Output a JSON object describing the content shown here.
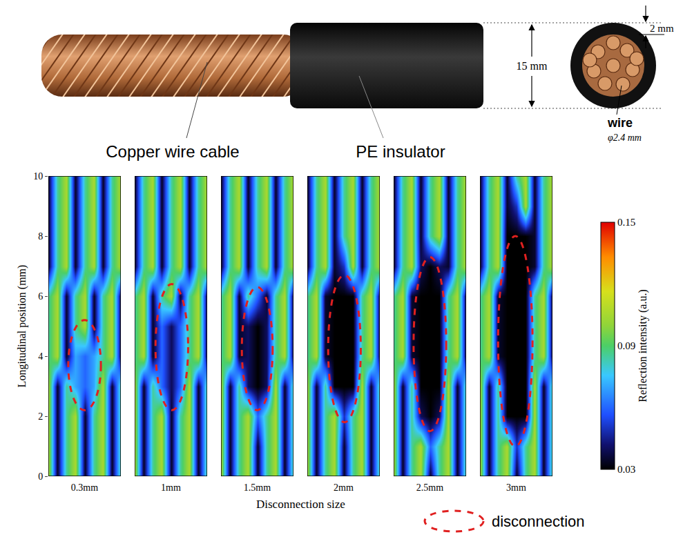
{
  "figure_labels": {
    "cable": "Copper wire cable",
    "insulator": "PE insulator",
    "diameter": "15 mm",
    "thickness": "2 mm",
    "wire": "wire",
    "wire_diameter": "φ2.4 mm"
  },
  "chart_data": {
    "type": "heatmap",
    "x_label": "Disconnection size",
    "y_label": "Longitudinal position (mm)",
    "x": [
      0,
      1,
      2,
      3,
      4,
      5,
      6,
      7,
      8
    ],
    "y": [
      0,
      1,
      2,
      3,
      4,
      5,
      6,
      7,
      8,
      9,
      10
    ],
    "xlim": [
      0,
      8
    ],
    "ylim": [
      0,
      10
    ],
    "yticks": [
      0,
      2,
      4,
      6,
      8,
      10
    ],
    "tick_labels": "y",
    "grid": false,
    "legend": "bottom right",
    "legend_label": "disconnection",
    "colorbar": {
      "title": "Reflection intensity (a.u.)",
      "range": [
        0.03,
        0.15
      ],
      "ticks": [
        0.03,
        0.09,
        0.15
      ]
    },
    "panels": [
      {
        "label": "0.3mm",
        "disconnection": {
          "x": [
            2.2,
            5.8
          ],
          "y": [
            2.2,
            5.2
          ]
        },
        "z": [
          [
            0.105,
            0.035,
            0.085,
            0.105,
            0.035,
            0.085,
            0.105,
            0.035,
            0.085
          ],
          [
            0.105,
            0.035,
            0.085,
            0.105,
            0.035,
            0.085,
            0.105,
            0.035,
            0.085
          ],
          [
            0.105,
            0.035,
            0.085,
            0.105,
            0.035,
            0.085,
            0.105,
            0.035,
            0.085
          ],
          [
            0.105,
            0.035,
            0.085,
            0.07,
            0.06,
            0.07,
            0.105,
            0.035,
            0.085
          ],
          [
            0.085,
            0.105,
            0.035,
            0.07,
            0.06,
            0.07,
            0.085,
            0.105,
            0.035
          ],
          [
            0.085,
            0.105,
            0.035,
            0.085,
            0.105,
            0.035,
            0.085,
            0.105,
            0.035
          ],
          [
            0.085,
            0.105,
            0.035,
            0.085,
            0.105,
            0.035,
            0.085,
            0.105,
            0.035
          ],
          [
            0.035,
            0.085,
            0.105,
            0.035,
            0.085,
            0.105,
            0.035,
            0.085,
            0.105
          ],
          [
            0.035,
            0.085,
            0.105,
            0.035,
            0.085,
            0.105,
            0.035,
            0.085,
            0.105
          ],
          [
            0.035,
            0.085,
            0.105,
            0.035,
            0.085,
            0.105,
            0.035,
            0.085,
            0.105
          ],
          [
            0.035,
            0.085,
            0.105,
            0.035,
            0.085,
            0.105,
            0.035,
            0.085,
            0.105
          ]
        ]
      },
      {
        "label": "1mm",
        "disconnection": {
          "x": [
            2.3,
            5.9
          ],
          "y": [
            2.2,
            6.4
          ]
        },
        "z": [
          [
            0.105,
            0.035,
            0.085,
            0.105,
            0.035,
            0.085,
            0.105,
            0.035,
            0.085
          ],
          [
            0.105,
            0.035,
            0.085,
            0.105,
            0.035,
            0.085,
            0.105,
            0.035,
            0.085
          ],
          [
            0.105,
            0.035,
            0.085,
            0.105,
            0.035,
            0.085,
            0.105,
            0.035,
            0.085
          ],
          [
            0.105,
            0.035,
            0.085,
            0.06,
            0.04,
            0.06,
            0.105,
            0.035,
            0.085
          ],
          [
            0.085,
            0.105,
            0.035,
            0.06,
            0.04,
            0.06,
            0.085,
            0.105,
            0.035
          ],
          [
            0.085,
            0.105,
            0.035,
            0.06,
            0.04,
            0.06,
            0.085,
            0.105,
            0.035
          ],
          [
            0.085,
            0.105,
            0.035,
            0.085,
            0.105,
            0.035,
            0.085,
            0.105,
            0.035
          ],
          [
            0.035,
            0.085,
            0.105,
            0.035,
            0.085,
            0.105,
            0.035,
            0.085,
            0.105
          ],
          [
            0.035,
            0.085,
            0.105,
            0.035,
            0.085,
            0.105,
            0.035,
            0.085,
            0.105
          ],
          [
            0.035,
            0.085,
            0.105,
            0.035,
            0.085,
            0.105,
            0.035,
            0.085,
            0.105
          ],
          [
            0.035,
            0.085,
            0.105,
            0.035,
            0.085,
            0.105,
            0.035,
            0.085,
            0.105
          ]
        ]
      },
      {
        "label": "1.5mm",
        "disconnection": {
          "x": [
            2.3,
            5.7
          ],
          "y": [
            2.2,
            6.3
          ]
        },
        "z": [
          [
            0.105,
            0.035,
            0.085,
            0.105,
            0.035,
            0.085,
            0.105,
            0.035,
            0.085
          ],
          [
            0.105,
            0.035,
            0.085,
            0.105,
            0.035,
            0.085,
            0.105,
            0.035,
            0.085
          ],
          [
            0.105,
            0.035,
            0.085,
            0.105,
            0.06,
            0.085,
            0.105,
            0.035,
            0.085
          ],
          [
            0.105,
            0.035,
            0.085,
            0.04,
            0.03,
            0.04,
            0.105,
            0.035,
            0.085
          ],
          [
            0.085,
            0.105,
            0.035,
            0.04,
            0.03,
            0.04,
            0.085,
            0.105,
            0.035
          ],
          [
            0.085,
            0.105,
            0.035,
            0.04,
            0.03,
            0.04,
            0.085,
            0.105,
            0.035
          ],
          [
            0.085,
            0.105,
            0.035,
            0.085,
            0.06,
            0.035,
            0.085,
            0.105,
            0.035
          ],
          [
            0.035,
            0.085,
            0.105,
            0.035,
            0.085,
            0.105,
            0.035,
            0.085,
            0.105
          ],
          [
            0.035,
            0.085,
            0.105,
            0.035,
            0.085,
            0.105,
            0.035,
            0.085,
            0.105
          ],
          [
            0.035,
            0.085,
            0.105,
            0.035,
            0.085,
            0.105,
            0.035,
            0.085,
            0.105
          ],
          [
            0.035,
            0.085,
            0.105,
            0.035,
            0.085,
            0.105,
            0.035,
            0.085,
            0.105
          ]
        ]
      },
      {
        "label": "2mm",
        "disconnection": {
          "x": [
            2.3,
            5.9
          ],
          "y": [
            1.8,
            6.7
          ]
        },
        "z": [
          [
            0.105,
            0.035,
            0.085,
            0.105,
            0.035,
            0.085,
            0.105,
            0.035,
            0.085
          ],
          [
            0.105,
            0.035,
            0.085,
            0.105,
            0.035,
            0.085,
            0.105,
            0.035,
            0.085
          ],
          [
            0.105,
            0.035,
            0.085,
            0.105,
            0.05,
            0.085,
            0.105,
            0.035,
            0.085
          ],
          [
            0.105,
            0.035,
            0.085,
            0.03,
            0.03,
            0.03,
            0.105,
            0.035,
            0.085
          ],
          [
            0.085,
            0.105,
            0.035,
            0.03,
            0.03,
            0.03,
            0.085,
            0.105,
            0.035
          ],
          [
            0.085,
            0.105,
            0.035,
            0.03,
            0.03,
            0.03,
            0.085,
            0.105,
            0.035
          ],
          [
            0.085,
            0.105,
            0.035,
            0.03,
            0.03,
            0.03,
            0.085,
            0.105,
            0.035
          ],
          [
            0.035,
            0.085,
            0.105,
            0.035,
            0.05,
            0.105,
            0.035,
            0.085,
            0.105
          ],
          [
            0.035,
            0.085,
            0.105,
            0.035,
            0.085,
            0.105,
            0.035,
            0.085,
            0.105
          ],
          [
            0.035,
            0.085,
            0.105,
            0.035,
            0.085,
            0.105,
            0.035,
            0.085,
            0.105
          ],
          [
            0.035,
            0.085,
            0.105,
            0.035,
            0.085,
            0.105,
            0.035,
            0.085,
            0.105
          ]
        ]
      },
      {
        "label": "2.5mm",
        "disconnection": {
          "x": [
            2.2,
            5.8
          ],
          "y": [
            1.5,
            7.3
          ]
        },
        "z": [
          [
            0.105,
            0.035,
            0.085,
            0.105,
            0.035,
            0.085,
            0.105,
            0.035,
            0.085
          ],
          [
            0.105,
            0.035,
            0.085,
            0.105,
            0.06,
            0.085,
            0.105,
            0.035,
            0.085
          ],
          [
            0.105,
            0.035,
            0.085,
            0.04,
            0.03,
            0.04,
            0.105,
            0.035,
            0.085
          ],
          [
            0.105,
            0.035,
            0.085,
            0.03,
            0.03,
            0.03,
            0.105,
            0.035,
            0.085
          ],
          [
            0.085,
            0.105,
            0.035,
            0.03,
            0.03,
            0.03,
            0.085,
            0.105,
            0.035
          ],
          [
            0.085,
            0.105,
            0.035,
            0.03,
            0.03,
            0.03,
            0.085,
            0.105,
            0.035
          ],
          [
            0.085,
            0.105,
            0.035,
            0.03,
            0.03,
            0.03,
            0.085,
            0.105,
            0.035
          ],
          [
            0.035,
            0.085,
            0.105,
            0.04,
            0.03,
            0.04,
            0.035,
            0.085,
            0.105
          ],
          [
            0.035,
            0.085,
            0.105,
            0.035,
            0.085,
            0.105,
            0.035,
            0.085,
            0.105
          ],
          [
            0.035,
            0.085,
            0.105,
            0.035,
            0.085,
            0.105,
            0.035,
            0.085,
            0.105
          ],
          [
            0.035,
            0.085,
            0.105,
            0.035,
            0.085,
            0.105,
            0.035,
            0.085,
            0.105
          ]
        ]
      },
      {
        "label": "3mm",
        "disconnection": {
          "x": [
            2.0,
            5.8
          ],
          "y": [
            1.0,
            8.0
          ]
        },
        "z": [
          [
            0.105,
            0.035,
            0.085,
            0.105,
            0.035,
            0.085,
            0.105,
            0.035,
            0.085
          ],
          [
            0.105,
            0.035,
            0.085,
            0.105,
            0.05,
            0.085,
            0.105,
            0.035,
            0.085
          ],
          [
            0.105,
            0.035,
            0.085,
            0.03,
            0.03,
            0.03,
            0.105,
            0.035,
            0.085
          ],
          [
            0.105,
            0.035,
            0.085,
            0.03,
            0.03,
            0.03,
            0.105,
            0.035,
            0.085
          ],
          [
            0.085,
            0.105,
            0.035,
            0.03,
            0.03,
            0.03,
            0.085,
            0.105,
            0.035
          ],
          [
            0.085,
            0.105,
            0.035,
            0.03,
            0.03,
            0.03,
            0.085,
            0.105,
            0.035
          ],
          [
            0.085,
            0.105,
            0.035,
            0.03,
            0.03,
            0.03,
            0.085,
            0.105,
            0.035
          ],
          [
            0.035,
            0.085,
            0.105,
            0.03,
            0.03,
            0.03,
            0.035,
            0.085,
            0.105
          ],
          [
            0.035,
            0.085,
            0.105,
            0.03,
            0.03,
            0.03,
            0.035,
            0.085,
            0.105
          ],
          [
            0.035,
            0.085,
            0.105,
            0.035,
            0.05,
            0.105,
            0.035,
            0.085,
            0.105
          ],
          [
            0.035,
            0.085,
            0.105,
            0.035,
            0.085,
            0.105,
            0.035,
            0.085,
            0.105
          ]
        ]
      }
    ]
  }
}
